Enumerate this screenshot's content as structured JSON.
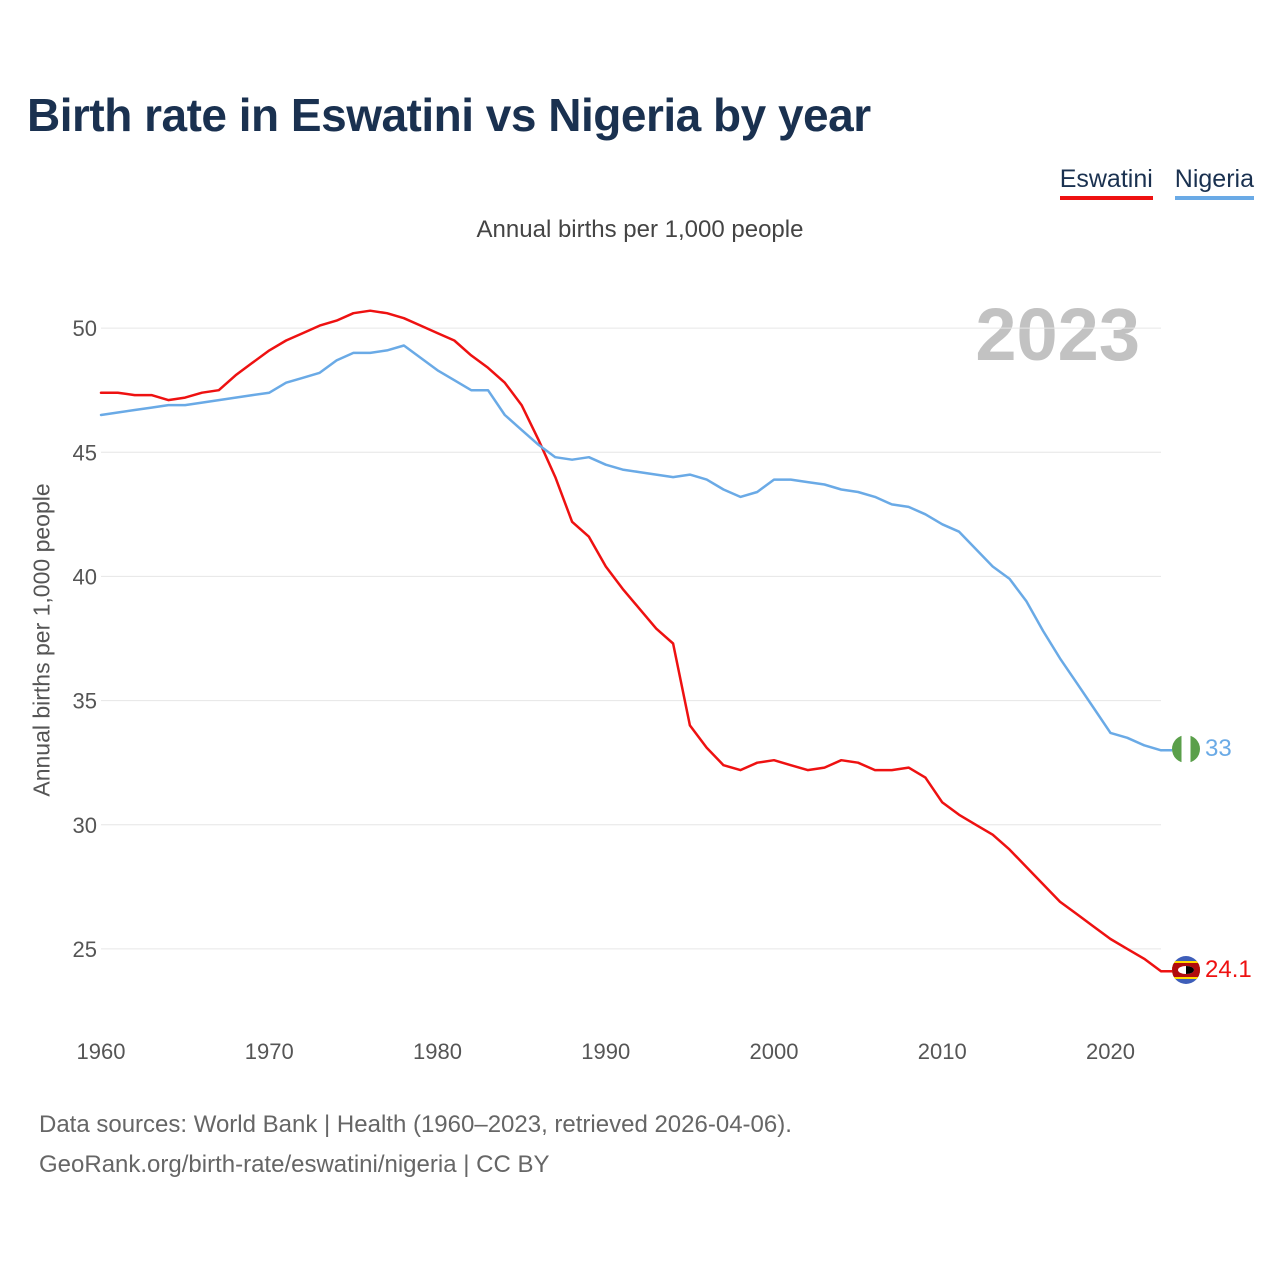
{
  "title": "Birth rate in Eswatini vs Nigeria by year",
  "subtitle": "Annual births per 1,000 people",
  "year_label": "2023",
  "legend": [
    {
      "name": "Eswatini",
      "color": "#ee1111"
    },
    {
      "name": "Nigeria",
      "color": "#6aaae6"
    }
  ],
  "footer": {
    "line1": "Data sources: World Bank | Health (1960–2023, retrieved 2026-04-06).",
    "line2": "GeoRank.org/birth-rate/eswatini/nigeria | CC BY"
  },
  "chart_data": {
    "type": "line",
    "title": "Birth rate in Eswatini vs Nigeria by year",
    "xlabel": "",
    "ylabel": "Annual births per 1,000 people",
    "xlim": [
      1960,
      2023
    ],
    "ylim": [
      22.5,
      52.5
    ],
    "x_ticks": [
      1960,
      1970,
      1980,
      1990,
      2000,
      2010,
      2020
    ],
    "y_ticks": [
      25,
      30,
      35,
      40,
      45,
      50
    ],
    "grid": true,
    "legend_position": "top-right",
    "x": [
      1960,
      1961,
      1962,
      1963,
      1964,
      1965,
      1966,
      1967,
      1968,
      1969,
      1970,
      1971,
      1972,
      1973,
      1974,
      1975,
      1976,
      1977,
      1978,
      1979,
      1980,
      1981,
      1982,
      1983,
      1984,
      1985,
      1986,
      1987,
      1988,
      1989,
      1990,
      1991,
      1992,
      1993,
      1994,
      1995,
      1996,
      1997,
      1998,
      1999,
      2000,
      2001,
      2002,
      2003,
      2004,
      2005,
      2006,
      2007,
      2008,
      2009,
      2010,
      2011,
      2012,
      2013,
      2014,
      2015,
      2016,
      2017,
      2018,
      2019,
      2020,
      2021,
      2022,
      2023
    ],
    "series": [
      {
        "name": "Eswatini",
        "color": "#ee1111",
        "end_label": "24.1",
        "values": [
          47.4,
          47.4,
          47.3,
          47.3,
          47.1,
          47.2,
          47.4,
          47.5,
          48.1,
          48.6,
          49.1,
          49.5,
          49.8,
          50.1,
          50.3,
          50.6,
          50.7,
          50.6,
          50.4,
          50.1,
          49.8,
          49.5,
          48.9,
          48.4,
          47.8,
          46.9,
          45.5,
          44.0,
          42.2,
          41.6,
          40.4,
          39.5,
          38.7,
          37.9,
          37.3,
          34.0,
          33.1,
          32.4,
          32.2,
          32.5,
          32.6,
          32.4,
          32.2,
          32.3,
          32.6,
          32.5,
          32.2,
          32.2,
          32.3,
          31.9,
          30.9,
          30.4,
          30.0,
          29.6,
          29.0,
          28.3,
          27.6,
          26.9,
          26.4,
          25.9,
          25.4,
          25.0,
          24.6,
          24.1
        ]
      },
      {
        "name": "Nigeria",
        "color": "#6aaae6",
        "end_label": "33",
        "values": [
          46.5,
          46.6,
          46.7,
          46.8,
          46.9,
          46.9,
          47.0,
          47.1,
          47.2,
          47.3,
          47.4,
          47.8,
          48.0,
          48.2,
          48.7,
          49.0,
          49.0,
          49.1,
          49.3,
          48.8,
          48.3,
          47.9,
          47.5,
          47.5,
          46.5,
          45.9,
          45.3,
          44.8,
          44.7,
          44.8,
          44.5,
          44.3,
          44.2,
          44.1,
          44.0,
          44.1,
          43.9,
          43.5,
          43.2,
          43.4,
          43.9,
          43.9,
          43.8,
          43.7,
          43.5,
          43.4,
          43.2,
          42.9,
          42.8,
          42.5,
          42.1,
          41.8,
          41.1,
          40.4,
          39.9,
          39.0,
          37.8,
          36.7,
          35.7,
          34.7,
          33.7,
          33.5,
          33.2,
          33.0
        ]
      }
    ]
  }
}
